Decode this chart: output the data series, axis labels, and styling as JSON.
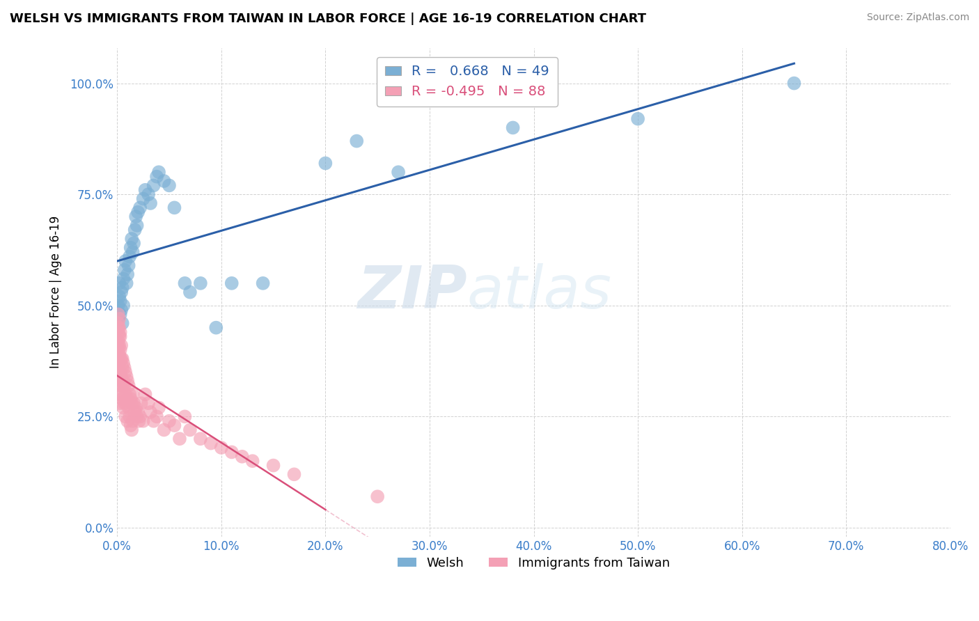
{
  "title": "WELSH VS IMMIGRANTS FROM TAIWAN IN LABOR FORCE | AGE 16-19 CORRELATION CHART",
  "source": "Source: ZipAtlas.com",
  "ylabel": "In Labor Force | Age 16-19",
  "watermark_zip": "ZIP",
  "watermark_atlas": "atlas",
  "blue_R": 0.668,
  "blue_N": 49,
  "pink_R": -0.495,
  "pink_N": 88,
  "xlim": [
    0.0,
    0.8
  ],
  "ylim": [
    -0.02,
    1.08
  ],
  "xticks": [
    0.0,
    0.1,
    0.2,
    0.3,
    0.4,
    0.5,
    0.6,
    0.7,
    0.8
  ],
  "xticklabels": [
    "0.0%",
    "10.0%",
    "20.0%",
    "30.0%",
    "40.0%",
    "50.0%",
    "60.0%",
    "70.0%",
    "80.0%"
  ],
  "yticks": [
    0.0,
    0.25,
    0.5,
    0.75,
    1.0
  ],
  "yticklabels": [
    "0.0%",
    "25.0%",
    "50.0%",
    "75.0%",
    "100.0%"
  ],
  "blue_color": "#7BAFD4",
  "pink_color": "#F4A0B5",
  "blue_line_color": "#2B5FA8",
  "pink_line_color": "#D94F7A",
  "legend_label_welsh": "Welsh",
  "legend_label_taiwan": "Immigrants from Taiwan",
  "blue_x": [
    0.001,
    0.001,
    0.002,
    0.002,
    0.003,
    0.003,
    0.004,
    0.004,
    0.005,
    0.005,
    0.006,
    0.006,
    0.007,
    0.008,
    0.009,
    0.01,
    0.011,
    0.012,
    0.013,
    0.014,
    0.015,
    0.016,
    0.017,
    0.018,
    0.019,
    0.02,
    0.022,
    0.025,
    0.027,
    0.03,
    0.032,
    0.035,
    0.038,
    0.04,
    0.045,
    0.05,
    0.055,
    0.065,
    0.07,
    0.08,
    0.095,
    0.11,
    0.14,
    0.2,
    0.23,
    0.27,
    0.38,
    0.5,
    0.65
  ],
  "blue_y": [
    0.5,
    0.47,
    0.52,
    0.55,
    0.48,
    0.51,
    0.49,
    0.53,
    0.46,
    0.54,
    0.56,
    0.5,
    0.58,
    0.6,
    0.55,
    0.57,
    0.59,
    0.61,
    0.63,
    0.65,
    0.62,
    0.64,
    0.67,
    0.7,
    0.68,
    0.71,
    0.72,
    0.74,
    0.76,
    0.75,
    0.73,
    0.77,
    0.79,
    0.8,
    0.78,
    0.77,
    0.72,
    0.55,
    0.53,
    0.55,
    0.45,
    0.55,
    0.55,
    0.82,
    0.87,
    0.8,
    0.9,
    0.92,
    1.0
  ],
  "pink_x": [
    0.001,
    0.001,
    0.001,
    0.001,
    0.001,
    0.001,
    0.001,
    0.001,
    0.001,
    0.001,
    0.002,
    0.002,
    0.002,
    0.002,
    0.002,
    0.002,
    0.002,
    0.002,
    0.002,
    0.003,
    0.003,
    0.003,
    0.003,
    0.003,
    0.003,
    0.003,
    0.004,
    0.004,
    0.004,
    0.004,
    0.005,
    0.005,
    0.005,
    0.005,
    0.006,
    0.006,
    0.006,
    0.007,
    0.007,
    0.007,
    0.008,
    0.008,
    0.008,
    0.009,
    0.009,
    0.01,
    0.01,
    0.01,
    0.011,
    0.011,
    0.012,
    0.012,
    0.013,
    0.013,
    0.014,
    0.014,
    0.015,
    0.015,
    0.016,
    0.017,
    0.018,
    0.019,
    0.02,
    0.021,
    0.022,
    0.023,
    0.025,
    0.027,
    0.03,
    0.032,
    0.035,
    0.038,
    0.04,
    0.045,
    0.05,
    0.055,
    0.06,
    0.065,
    0.07,
    0.08,
    0.09,
    0.1,
    0.11,
    0.12,
    0.13,
    0.15,
    0.17,
    0.25
  ],
  "pink_y": [
    0.45,
    0.42,
    0.4,
    0.38,
    0.36,
    0.44,
    0.48,
    0.35,
    0.41,
    0.46,
    0.43,
    0.37,
    0.39,
    0.35,
    0.41,
    0.45,
    0.33,
    0.47,
    0.3,
    0.38,
    0.43,
    0.35,
    0.4,
    0.32,
    0.28,
    0.44,
    0.38,
    0.34,
    0.3,
    0.41,
    0.38,
    0.36,
    0.32,
    0.29,
    0.37,
    0.33,
    0.27,
    0.36,
    0.32,
    0.28,
    0.35,
    0.3,
    0.25,
    0.34,
    0.28,
    0.33,
    0.29,
    0.24,
    0.32,
    0.27,
    0.3,
    0.25,
    0.29,
    0.23,
    0.28,
    0.22,
    0.3,
    0.24,
    0.28,
    0.26,
    0.27,
    0.25,
    0.26,
    0.24,
    0.25,
    0.28,
    0.24,
    0.3,
    0.28,
    0.26,
    0.24,
    0.25,
    0.27,
    0.22,
    0.24,
    0.23,
    0.2,
    0.25,
    0.22,
    0.2,
    0.19,
    0.18,
    0.17,
    0.16,
    0.15,
    0.14,
    0.12,
    0.07
  ],
  "grid_color": "#CCCCCC",
  "background_color": "#FFFFFF",
  "fig_width": 14.06,
  "fig_height": 8.92,
  "dpi": 100
}
